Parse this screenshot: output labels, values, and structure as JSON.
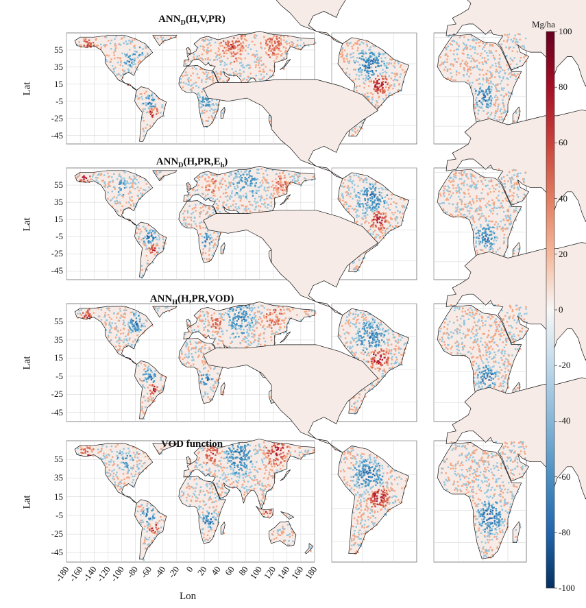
{
  "panels": [
    {
      "title_main": "ANN",
      "title_sub": "D",
      "title_rest": "(H,V,PR)",
      "title_rest_sub": "",
      "title_tail": ""
    },
    {
      "title_main": "ANN",
      "title_sub": "D",
      "title_rest": "(H,PR,E",
      "title_rest_sub": "h",
      "title_tail": ")"
    },
    {
      "title_main": "ANN",
      "title_sub": "H",
      "title_rest": "(H,PR,VOD)",
      "title_rest_sub": "",
      "title_tail": ""
    },
    {
      "title_main": "VOD function",
      "title_sub": "",
      "title_rest": "",
      "title_rest_sub": "",
      "title_tail": ""
    }
  ],
  "axes": {
    "ylabel": "Lat",
    "xlabel": "Lon",
    "lat_ticks": [
      "55",
      "35",
      "15",
      "-5",
      "-25",
      "-45"
    ],
    "lon_ticks": [
      "-180",
      "-160",
      "-140",
      "-120",
      "-100",
      "-80",
      "-60",
      "-40",
      "-20",
      "0",
      "20",
      "40",
      "60",
      "80",
      "100",
      "120",
      "140",
      "160",
      "180"
    ]
  },
  "colorbar": {
    "unit": "Mg/ha",
    "ticks": [
      "100",
      "80",
      "60",
      "40",
      "20",
      "0",
      "-20",
      "-40",
      "-60",
      "-80",
      "-100"
    ],
    "max_color": "#67001f",
    "mid_color": "#f7f7f7",
    "min_color": "#053061"
  },
  "map_colors": {
    "land": "#f6ebe6",
    "outline": "#111111",
    "grid": "#cfcfcf",
    "positive": "#d6604d",
    "strong_positive": "#b2182b",
    "negative": "#4393c3",
    "strong_negative": "#2166ac"
  }
}
